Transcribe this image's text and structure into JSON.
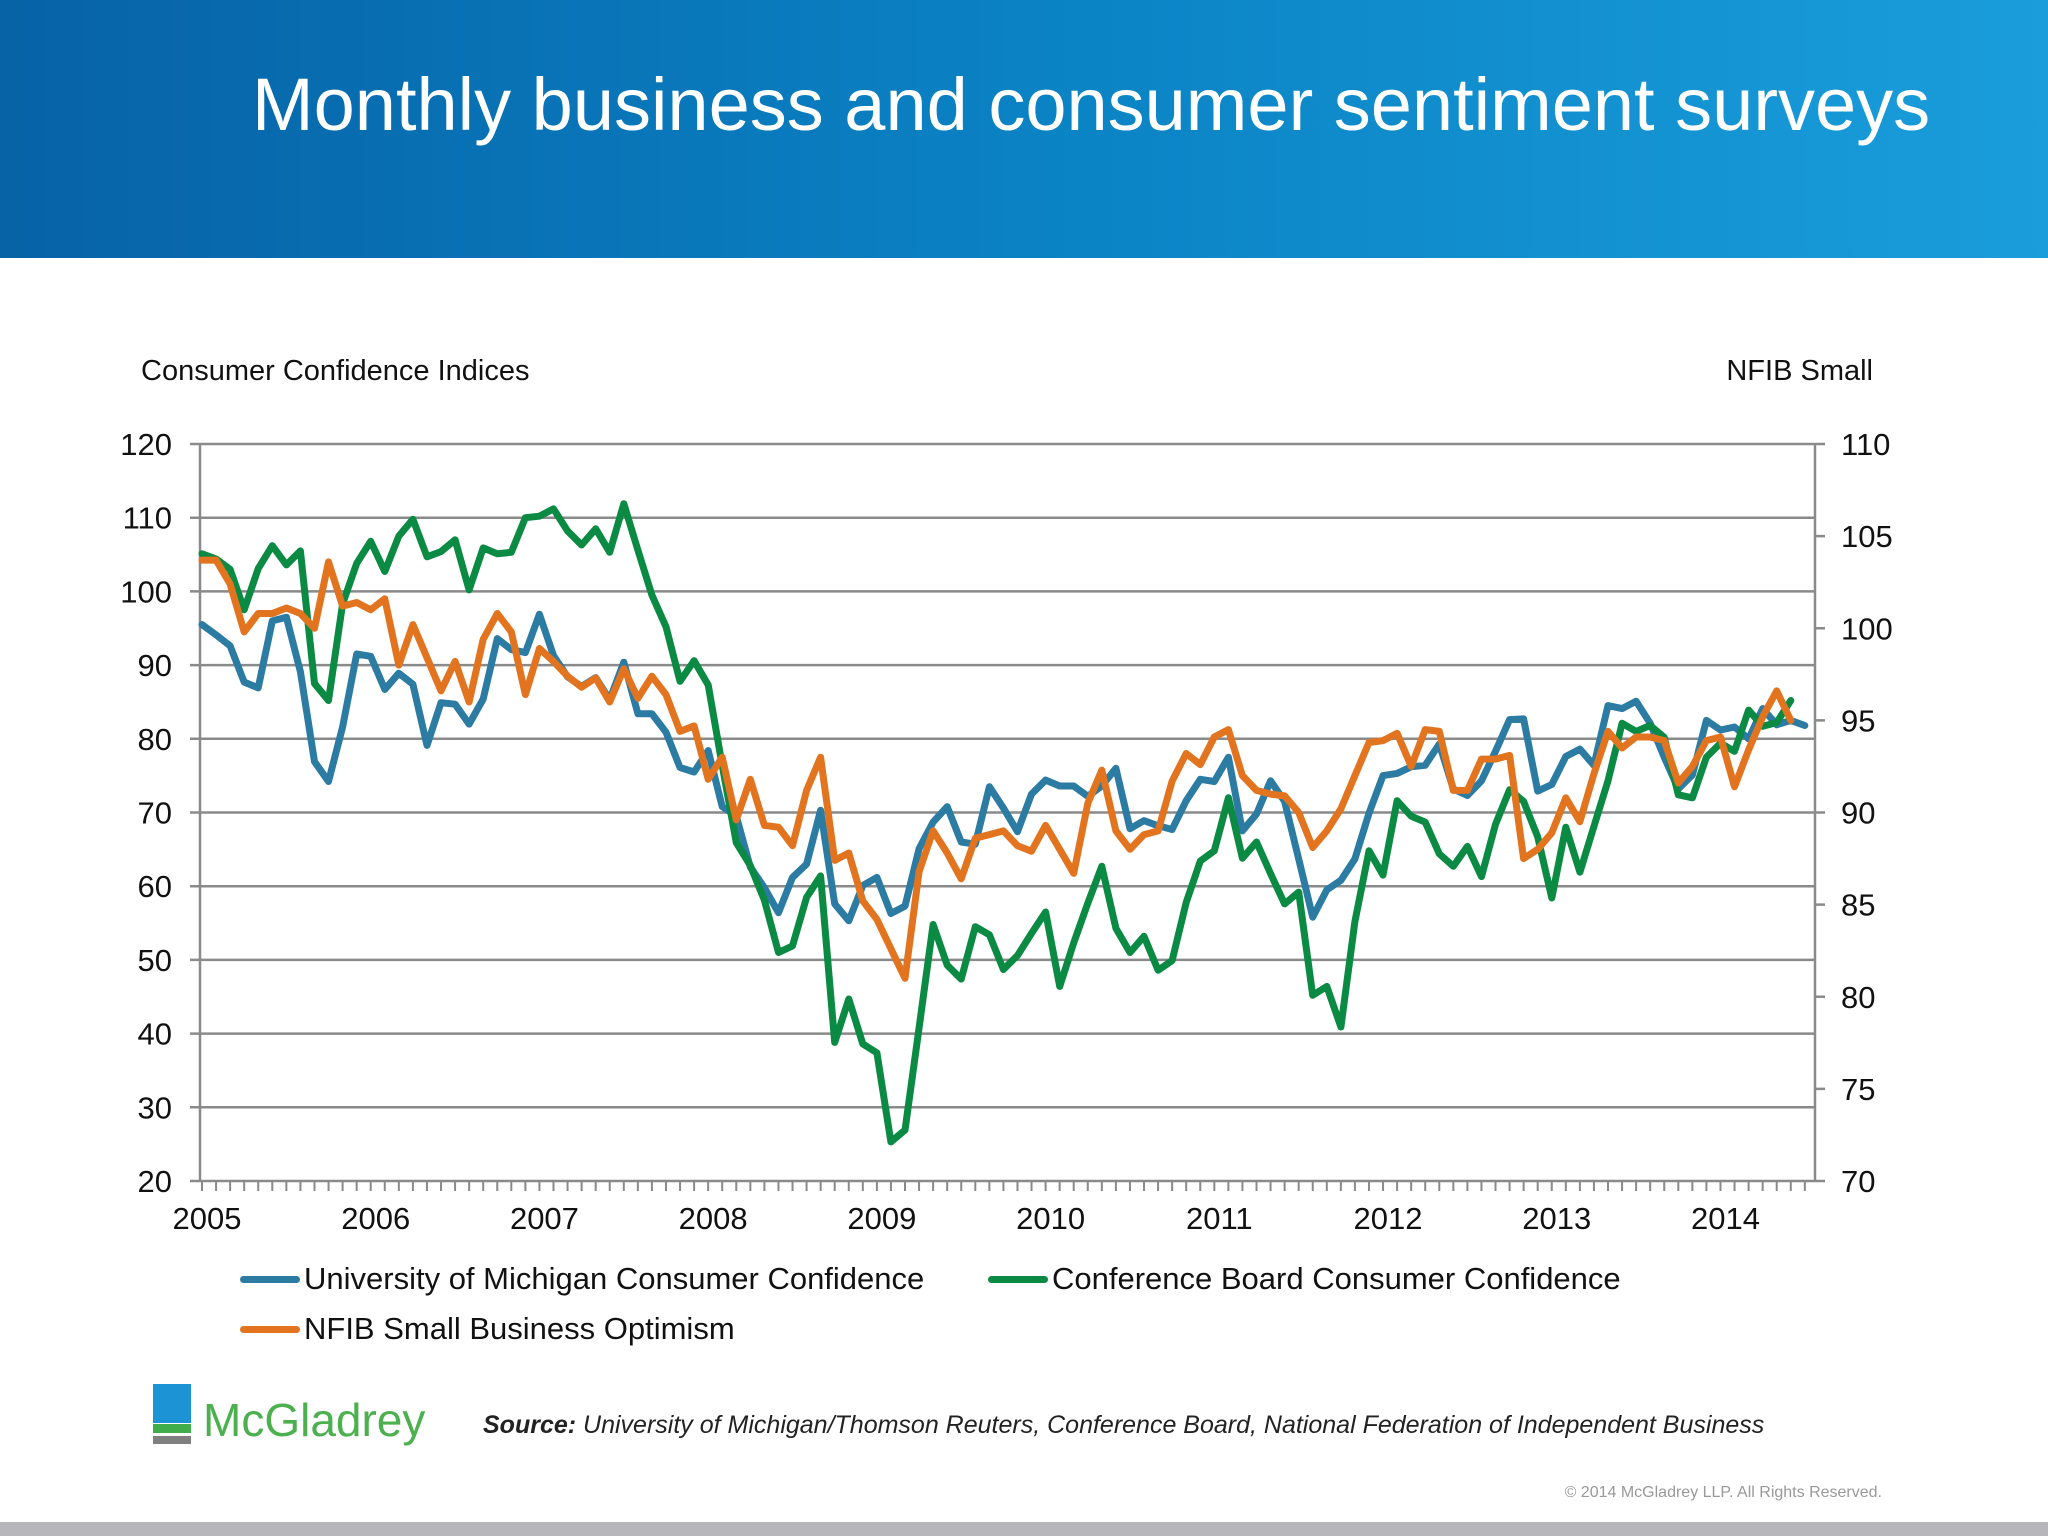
{
  "header": {
    "title": "Monthly business and consumer sentiment surveys"
  },
  "footer": {
    "logo_text": "McGladrey",
    "source_label": "Source:",
    "source_text": "University of Michigan/Thomson Reuters, Conference Board, National Federation of Independent Business",
    "copyright": "© 2014 McGladrey LLP. All Rights Reserved."
  },
  "chart_data": {
    "type": "line",
    "ylabel": "Consumer Confidence Indices",
    "y2label": "NFIB Small",
    "ylim": [
      20,
      120
    ],
    "y2lim": [
      70,
      110
    ],
    "yticks": [
      "120",
      "110",
      "100",
      "90",
      "80",
      "70",
      "60",
      "50",
      "40",
      "30",
      "20"
    ],
    "y2ticks": [
      "110",
      "105",
      "100",
      "95",
      "90",
      "85",
      "80",
      "75",
      "70"
    ],
    "x_start": "2005-01",
    "x_frequency": "monthly",
    "xticks": [
      "2005",
      "2006",
      "2007",
      "2008",
      "2009",
      "2010",
      "2011",
      "2012",
      "2013",
      "2014"
    ],
    "grid": true,
    "legend_position": "bottom",
    "series": [
      {
        "name": "University of Michigan Consumer Confidence",
        "axis": "left",
        "color": "#2b7ba3",
        "values": [
          95.5,
          94.1,
          92.6,
          87.7,
          86.9,
          96.0,
          96.5,
          89.1,
          76.9,
          74.2,
          81.6,
          91.5,
          91.2,
          86.7,
          88.9,
          87.4,
          79.1,
          84.9,
          84.7,
          82.0,
          85.4,
          93.6,
          92.1,
          91.7,
          96.9,
          91.3,
          88.4,
          87.1,
          88.3,
          85.3,
          90.4,
          83.4,
          83.4,
          80.9,
          76.1,
          75.5,
          78.4,
          70.8,
          69.5,
          62.6,
          59.8,
          56.4,
          61.2,
          63.0,
          70.3,
          57.6,
          55.3,
          60.1,
          61.2,
          56.3,
          57.3,
          65.1,
          68.7,
          70.8,
          66.0,
          65.7,
          73.5,
          70.6,
          67.4,
          72.5,
          74.4,
          73.6,
          73.6,
          72.2,
          73.6,
          76.0,
          67.8,
          68.9,
          68.2,
          67.7,
          71.6,
          74.5,
          74.2,
          77.5,
          67.5,
          69.8,
          74.3,
          71.5,
          63.7,
          55.8,
          59.5,
          60.8,
          63.7,
          69.9,
          75.0,
          75.3,
          76.2,
          76.4,
          79.3,
          73.2,
          72.3,
          74.3,
          78.3,
          82.6,
          82.7,
          72.9,
          73.8,
          77.6,
          78.6,
          76.4,
          84.5,
          84.1,
          85.1,
          82.1,
          77.5,
          73.2,
          75.1,
          82.5,
          81.2,
          81.6,
          80.0,
          84.1,
          81.9,
          82.5,
          81.8
        ]
      },
      {
        "name": "Conference Board Consumer Confidence",
        "axis": "left",
        "color": "#0b8a43",
        "values": [
          105.1,
          104.4,
          103.0,
          97.5,
          103.1,
          106.2,
          103.6,
          105.5,
          87.5,
          85.2,
          98.3,
          103.8,
          106.8,
          102.7,
          107.5,
          109.8,
          104.7,
          105.4,
          107.0,
          100.2,
          105.9,
          105.1,
          105.3,
          110.0,
          110.2,
          111.2,
          108.2,
          106.3,
          108.5,
          105.3,
          111.9,
          105.6,
          99.5,
          95.2,
          87.8,
          90.6,
          87.3,
          76.4,
          65.9,
          62.8,
          58.1,
          51.0,
          51.9,
          58.5,
          61.4,
          38.8,
          44.7,
          38.6,
          37.4,
          25.3,
          26.9,
          40.8,
          54.8,
          49.3,
          47.4,
          54.5,
          53.4,
          48.7,
          50.6,
          53.6,
          56.5,
          46.4,
          52.3,
          57.7,
          62.7,
          54.3,
          51.0,
          53.2,
          48.6,
          49.9,
          57.8,
          63.4,
          64.8,
          72.0,
          63.8,
          66.0,
          61.7,
          57.6,
          59.2,
          45.2,
          46.4,
          40.9,
          55.2,
          64.8,
          61.5,
          71.6,
          69.5,
          68.7,
          64.4,
          62.7,
          65.4,
          61.3,
          68.4,
          73.1,
          71.5,
          66.7,
          58.4,
          68.0,
          61.9,
          68.1,
          74.3,
          82.1,
          81.0,
          81.8,
          80.2,
          72.4,
          72.0,
          77.5,
          79.4,
          78.3,
          83.9,
          81.7,
          82.2,
          85.2
        ]
      },
      {
        "name": "NFIB Small Business Optimism",
        "axis": "right",
        "color": "#e3741f",
        "values": [
          103.7,
          103.7,
          102.4,
          99.8,
          100.8,
          100.8,
          101.1,
          100.8,
          100.0,
          103.6,
          101.2,
          101.4,
          101.0,
          101.6,
          98.0,
          100.2,
          98.4,
          96.6,
          98.2,
          96.0,
          99.4,
          100.8,
          99.8,
          96.4,
          98.9,
          98.2,
          97.4,
          96.8,
          97.3,
          96.0,
          97.8,
          96.2,
          97.4,
          96.4,
          94.4,
          94.7,
          91.8,
          93.0,
          89.6,
          91.8,
          89.3,
          89.2,
          88.2,
          91.2,
          93.0,
          87.4,
          87.8,
          85.2,
          84.2,
          82.6,
          81.0,
          86.8,
          89.0,
          87.8,
          86.4,
          88.6,
          88.8,
          89.0,
          88.2,
          87.9,
          89.3,
          88.0,
          86.7,
          90.5,
          92.3,
          89.0,
          88.0,
          88.8,
          89.0,
          91.7,
          93.2,
          92.6,
          94.1,
          94.5,
          92.0,
          91.2,
          91.0,
          90.9,
          90.0,
          88.1,
          89.0,
          90.2,
          92.0,
          93.8,
          93.9,
          94.3,
          92.5,
          94.5,
          94.4,
          91.2,
          91.2,
          92.9,
          92.9,
          93.1,
          87.5,
          88.0,
          88.9,
          90.8,
          89.5,
          92.1,
          94.4,
          93.5,
          94.1,
          94.1,
          93.9,
          91.6,
          92.5,
          93.9,
          94.1,
          91.4,
          93.4,
          95.2,
          96.6,
          95.0
        ]
      }
    ]
  }
}
